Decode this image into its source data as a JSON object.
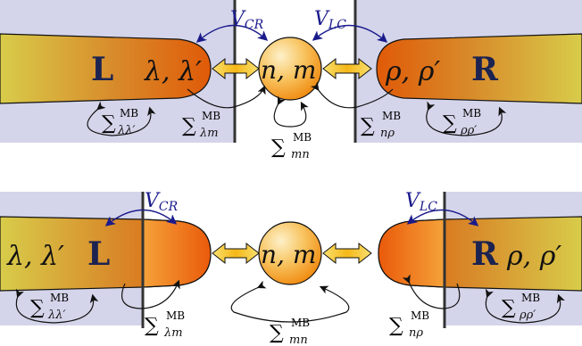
{
  "top": {
    "left_lead_label": "L",
    "left_level_label": "λ, λ′",
    "right_lead_label": "R",
    "right_level_label": "ρ, ρ′",
    "dot_label": "n, m",
    "coupling_left": "V_CR",
    "coupling_right": "V_LC",
    "sum_ll": "λλ′",
    "sum_lm": "λm",
    "sum_mn": "mn",
    "sum_np": "nρ",
    "sum_pp": "ρρ′",
    "sum_symbol": "∑",
    "sum_sup": "MB"
  },
  "bottom": {
    "left_lead_label": "L",
    "left_level_label": "λ, λ′",
    "right_lead_label": "R",
    "right_level_label": "ρ, ρ′",
    "dot_label": "n, m",
    "coupling_left": "V_CR",
    "coupling_right": "V_LC",
    "sum_ll": "λλ′",
    "sum_lm": "λm",
    "sum_mn": "mn",
    "sum_np": "nρ",
    "sum_pp": "ρρ′",
    "sum_symbol": "∑",
    "sum_sup": "MB"
  },
  "colors": {
    "background_panel": "#d4d5ea",
    "lead_outer": "#d8cc4a",
    "lead_inner": "#e06a10",
    "dot_light": "#fde7b0",
    "dot_dark": "#f29a18",
    "arrow_fill": "#f6c21c",
    "coupling_arrow": "#1a1a8c"
  }
}
